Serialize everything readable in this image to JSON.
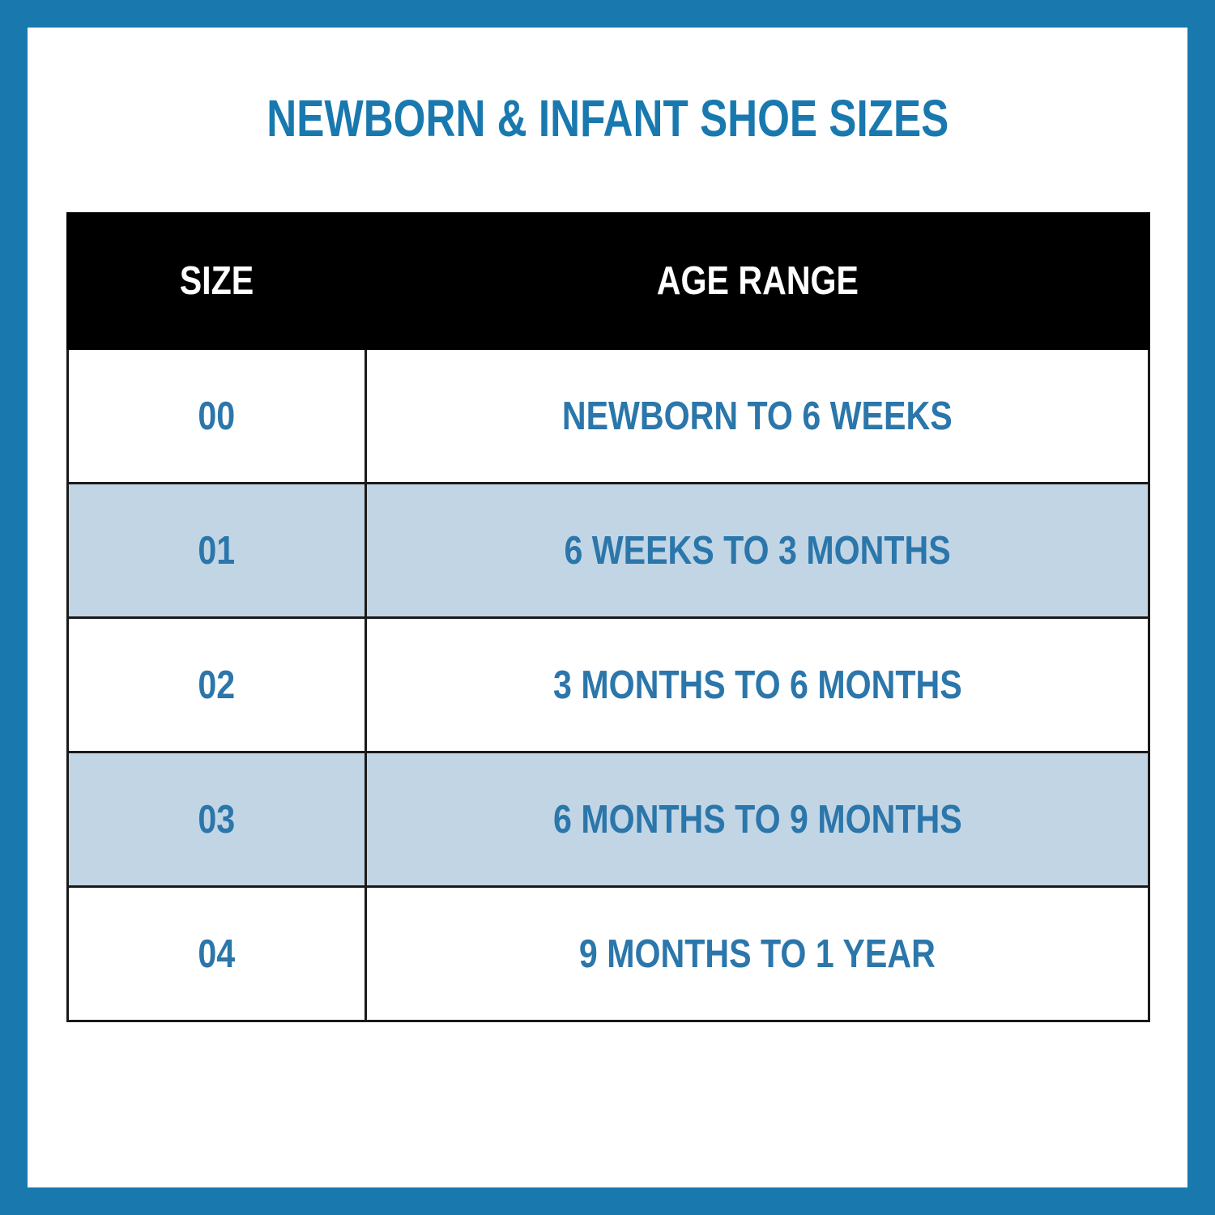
{
  "chart_data": {
    "type": "table",
    "title": "NEWBORN & INFANT SHOE SIZES",
    "columns": [
      "SIZE",
      "AGE RANGE"
    ],
    "rows": [
      [
        "00",
        "NEWBORN TO 6 WEEKS"
      ],
      [
        "01",
        "6 WEEKS TO 3 MONTHS"
      ],
      [
        "02",
        "3 MONTHS TO 6 MONTHS"
      ],
      [
        "03",
        "6 MONTHS TO 9 MONTHS"
      ],
      [
        "04",
        "9 MONTHS TO 1 YEAR"
      ]
    ],
    "layout_hints": {
      "striped_rows": true,
      "header_style": "black-bar",
      "frame": "solid-blue-border"
    }
  },
  "colors": {
    "frame_blue": "#1979af",
    "text_blue": "#2b76aa",
    "row_alt_blue": "#c2d5e4",
    "header_bg": "#000000",
    "header_text": "#ffffff",
    "grid_black": "#1a1a1a"
  }
}
